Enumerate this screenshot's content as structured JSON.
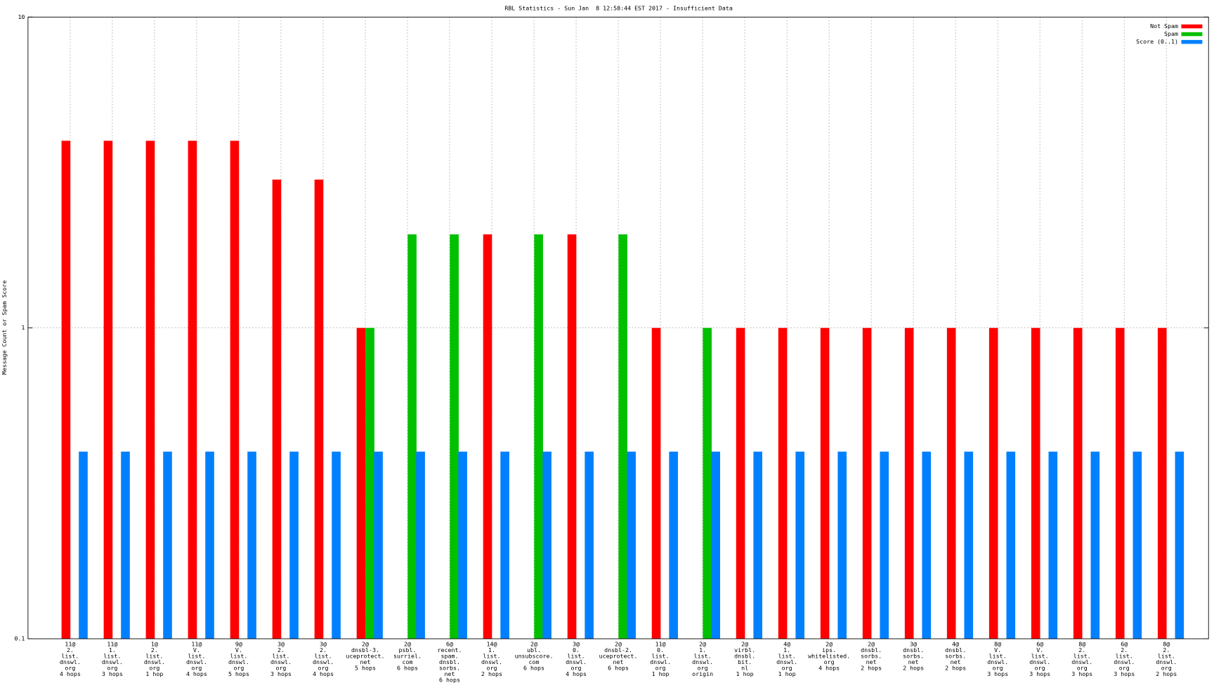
{
  "chart_data": {
    "type": "bar",
    "title": "RBL Statistics - Sun Jan  8 12:58:44 EST 2017 - Insufficient Data",
    "y_label": "Message Count or Spam Score",
    "log_y": true,
    "grid": true,
    "legend": "top right",
    "ylim": [
      0.1,
      10
    ],
    "yticks": [
      0.1,
      1,
      10
    ],
    "categories": [
      [
        "11@",
        "2.",
        "list.",
        "dnswl.",
        "org",
        "4 hops"
      ],
      [
        "11@",
        "1.",
        "list.",
        "dnswl.",
        "org",
        "3 hops"
      ],
      [
        "1@",
        "2.",
        "list.",
        "dnswl.",
        "org",
        "1 hop"
      ],
      [
        "11@",
        "V.",
        "list.",
        "dnswl.",
        "org",
        "4 hops"
      ],
      [
        "9@",
        "V.",
        "list.",
        "dnswl.",
        "org",
        "5 hops"
      ],
      [
        "3@",
        "2.",
        "list.",
        "dnswl.",
        "org",
        "3 hops"
      ],
      [
        "3@",
        "2.",
        "list.",
        "dnswl.",
        "org",
        "4 hops"
      ],
      [
        "2@",
        "dnsbl-3.",
        "uceprotect.",
        "net",
        "5 hops"
      ],
      [
        "2@",
        "psbl.",
        "surriel.",
        "com",
        "6 hops"
      ],
      [
        "6@",
        "recent.",
        "spam.",
        "dnsbl.",
        "sorbs.",
        "net",
        "6 hops"
      ],
      [
        "14@",
        "1.",
        "list.",
        "dnswl.",
        "org",
        "2 hops"
      ],
      [
        "2@",
        "ubl.",
        "unsubscore.",
        "com",
        "6 hops"
      ],
      [
        "3@",
        "0.",
        "list.",
        "dnswl.",
        "org",
        "4 hops"
      ],
      [
        "2@",
        "dnsbl-2.",
        "uceprotect.",
        "net",
        "6 hops"
      ],
      [
        "11@",
        "0.",
        "list.",
        "dnswl.",
        "org",
        "1 hop"
      ],
      [
        "2@",
        "1.",
        "list.",
        "dnswl.",
        "org",
        "origin"
      ],
      [
        "2@",
        "virbl.",
        "dnsbl.",
        "bit.",
        "nl",
        "1 hop"
      ],
      [
        "4@",
        "1.",
        "list.",
        "dnswl.",
        "org",
        "1 hop"
      ],
      [
        "2@",
        "ips.",
        "whitelisted.",
        "org",
        "4 hops"
      ],
      [
        "2@",
        "dnsbl.",
        "sorbs.",
        "net",
        "2 hops"
      ],
      [
        "3@",
        "dnsbl.",
        "sorbs.",
        "net",
        "2 hops"
      ],
      [
        "4@",
        "dnsbl.",
        "sorbs.",
        "net",
        "2 hops"
      ],
      [
        "8@",
        "V.",
        "list.",
        "dnswl.",
        "org",
        "3 hops"
      ],
      [
        "6@",
        "V.",
        "list.",
        "dnswl.",
        "org",
        "3 hops"
      ],
      [
        "8@",
        "2.",
        "list.",
        "dnswl.",
        "org",
        "3 hops"
      ],
      [
        "6@",
        "2.",
        "list.",
        "dnswl.",
        "org",
        "3 hops"
      ],
      [
        "8@",
        "2.",
        "list.",
        "dnswl.",
        "org",
        "2 hops"
      ]
    ],
    "series": [
      {
        "name": "Not Spam",
        "color": "#ff0000",
        "values": [
          4,
          4,
          4,
          4,
          4,
          3,
          3,
          1,
          null,
          null,
          2,
          null,
          2,
          null,
          1,
          null,
          1,
          1,
          1,
          1,
          1,
          1,
          1,
          1,
          1,
          1,
          1
        ]
      },
      {
        "name": "Spam",
        "color": "#00c000",
        "values": [
          null,
          null,
          null,
          null,
          null,
          null,
          null,
          1,
          2,
          2,
          null,
          2,
          null,
          2,
          null,
          1,
          null,
          null,
          null,
          null,
          null,
          null,
          null,
          null,
          null,
          null,
          null
        ]
      },
      {
        "name": "Score (0..1)",
        "color": "#0080ff",
        "values": [
          0.4,
          0.4,
          0.4,
          0.4,
          0.4,
          0.4,
          0.4,
          0.4,
          0.4,
          0.4,
          0.4,
          0.4,
          0.4,
          0.4,
          0.4,
          0.4,
          0.4,
          0.4,
          0.4,
          0.4,
          0.4,
          0.4,
          0.4,
          0.4,
          0.4,
          0.4,
          0.4
        ]
      }
    ]
  }
}
